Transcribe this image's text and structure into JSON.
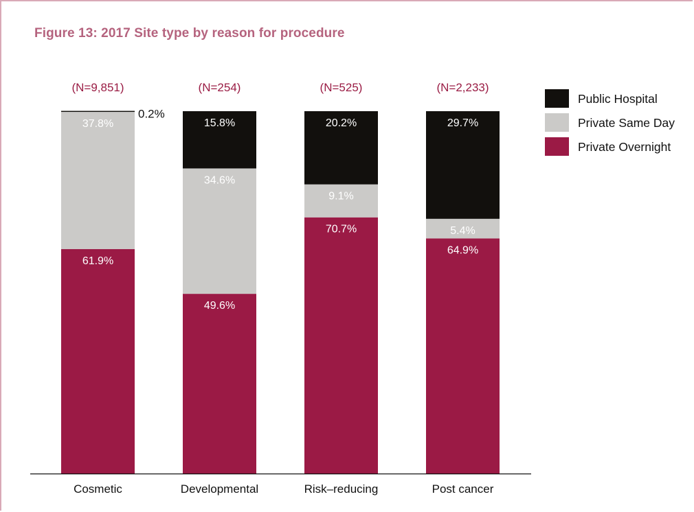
{
  "title": "Figure 13: 2017 Site type by reason for procedure",
  "colors": {
    "title": "#b5637e",
    "n_label": "#9a1c44",
    "public_hospital": "#12100d",
    "private_same_day": "#cbcac8",
    "private_overnight": "#9b1a45",
    "axis": "#111111"
  },
  "legend": [
    {
      "label": "Public Hospital",
      "color": "#12100d"
    },
    {
      "label": "Private Same Day",
      "color": "#cbcac8"
    },
    {
      "label": "Private Overnight",
      "color": "#9b1a45"
    }
  ],
  "chart_data": {
    "type": "bar",
    "stacked": true,
    "title": "Figure 13: 2017 Site type by reason for procedure",
    "xlabel": "",
    "ylabel": "",
    "ylim": [
      0,
      100
    ],
    "categories": [
      "Cosmetic",
      "Developmental",
      "Risk–reducing",
      "Post cancer"
    ],
    "n_labels": [
      "(N=9,851)",
      "(N=254)",
      "(N=525)",
      "(N=2,233)"
    ],
    "series": [
      {
        "name": "Private Overnight",
        "values": [
          61.9,
          49.6,
          70.7,
          64.9
        ],
        "labels": [
          "61.9%",
          "49.6%",
          "70.7%",
          "64.9%"
        ]
      },
      {
        "name": "Private Same Day",
        "values": [
          37.8,
          34.6,
          9.1,
          5.4
        ],
        "labels": [
          "37.8%",
          "34.6%",
          "9.1%",
          "5.4%"
        ]
      },
      {
        "name": "Public Hospital",
        "values": [
          0.2,
          15.8,
          20.2,
          29.7
        ],
        "labels": [
          "0.2%",
          "15.8%",
          "20.2%",
          "29.7%"
        ]
      }
    ],
    "legend_position": "top-right",
    "grid": false
  }
}
